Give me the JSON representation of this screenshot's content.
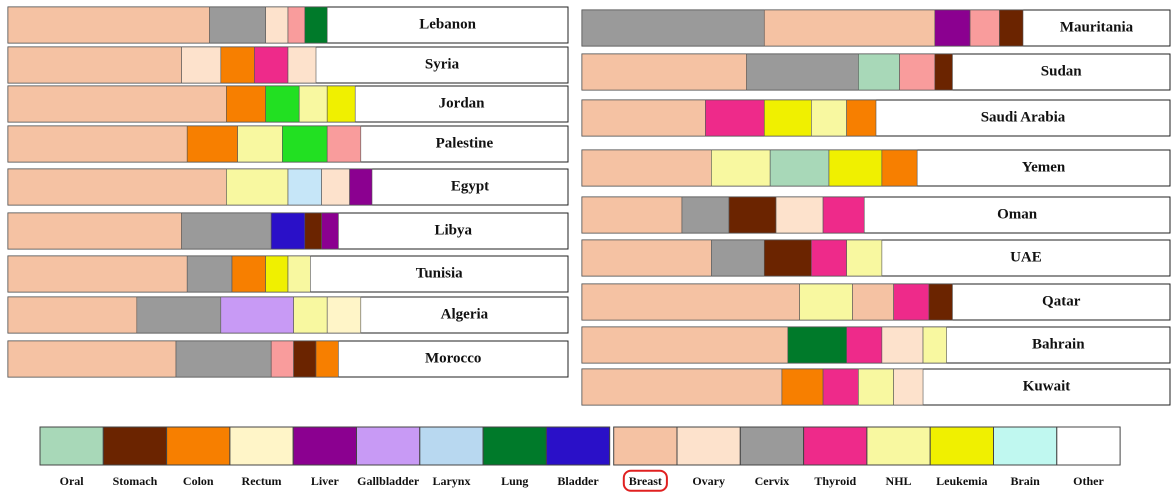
{
  "left": [
    {
      "name": "Lebanon",
      "segments": [
        {
          "color": "#f5c2a3",
          "value": 36
        },
        {
          "color": "#9a9a9a",
          "value": 10
        },
        {
          "color": "#fde2cc",
          "value": 4
        },
        {
          "color": "#f99c9c",
          "value": 3
        },
        {
          "color": "#007a2a",
          "value": 4
        }
      ]
    },
    {
      "name": "Syria",
      "segments": [
        {
          "color": "#f5c2a3",
          "value": 31
        },
        {
          "color": "#fde2cc",
          "value": 7
        },
        {
          "color": "#f77f00",
          "value": 6
        },
        {
          "color": "#ee2a8a",
          "value": 6
        },
        {
          "color": "#fde2cc",
          "value": 5
        }
      ]
    },
    {
      "name": "Jordan",
      "segments": [
        {
          "color": "#f5c2a3",
          "value": 39
        },
        {
          "color": "#f77f00",
          "value": 7
        },
        {
          "color": "#22e022",
          "value": 6
        },
        {
          "color": "#f8f8a0",
          "value": 5
        },
        {
          "color": "#f0f000",
          "value": 5
        }
      ]
    },
    {
      "name": "Palestine",
      "segments": [
        {
          "color": "#f5c2a3",
          "value": 32
        },
        {
          "color": "#f77f00",
          "value": 9
        },
        {
          "color": "#f8f8a0",
          "value": 8
        },
        {
          "color": "#22e022",
          "value": 8
        },
        {
          "color": "#f99c9c",
          "value": 6
        }
      ]
    },
    {
      "name": "Egypt",
      "segments": [
        {
          "color": "#f5c2a3",
          "value": 39
        },
        {
          "color": "#f8f8a0",
          "value": 11
        },
        {
          "color": "#c6e6f8",
          "value": 6
        },
        {
          "color": "#fde2cc",
          "value": 5
        },
        {
          "color": "#8b0090",
          "value": 4
        }
      ]
    },
    {
      "name": "Libya",
      "segments": [
        {
          "color": "#f5c2a3",
          "value": 31
        },
        {
          "color": "#9a9a9a",
          "value": 16
        },
        {
          "color": "#2a10c8",
          "value": 6
        },
        {
          "color": "#6b2400",
          "value": 3
        },
        {
          "color": "#8b0090",
          "value": 3
        }
      ]
    },
    {
      "name": "Tunisia",
      "segments": [
        {
          "color": "#f5c2a3",
          "value": 32
        },
        {
          "color": "#9a9a9a",
          "value": 8
        },
        {
          "color": "#f77f00",
          "value": 6
        },
        {
          "color": "#f0f000",
          "value": 4
        },
        {
          "color": "#f8f8a0",
          "value": 4
        }
      ]
    },
    {
      "name": "Algeria",
      "segments": [
        {
          "color": "#f5c2a3",
          "value": 23
        },
        {
          "color": "#9a9a9a",
          "value": 15
        },
        {
          "color": "#c89af5",
          "value": 13
        },
        {
          "color": "#f8f8a0",
          "value": 6
        },
        {
          "color": "#fff5c8",
          "value": 6
        }
      ]
    },
    {
      "name": "Morocco",
      "segments": [
        {
          "color": "#f5c2a3",
          "value": 30
        },
        {
          "color": "#9a9a9a",
          "value": 17
        },
        {
          "color": "#f99c9c",
          "value": 4
        },
        {
          "color": "#6b2400",
          "value": 4
        },
        {
          "color": "#f77f00",
          "value": 4
        }
      ]
    }
  ],
  "right": [
    {
      "name": "Mauritania",
      "segments": [
        {
          "color": "#9a9a9a",
          "value": 31
        },
        {
          "color": "#f5c2a3",
          "value": 29
        },
        {
          "color": "#8b0090",
          "value": 6
        },
        {
          "color": "#f99c9c",
          "value": 5
        },
        {
          "color": "#6b2400",
          "value": 4
        }
      ]
    },
    {
      "name": "Sudan",
      "segments": [
        {
          "color": "#f5c2a3",
          "value": 28
        },
        {
          "color": "#9a9a9a",
          "value": 19
        },
        {
          "color": "#a8d8b8",
          "value": 7
        },
        {
          "color": "#f99c9c",
          "value": 6
        },
        {
          "color": "#6b2400",
          "value": 3
        }
      ]
    },
    {
      "name": "Saudi Arabia",
      "segments": [
        {
          "color": "#f5c2a3",
          "value": 21
        },
        {
          "color": "#ee2a8a",
          "value": 10
        },
        {
          "color": "#f0f000",
          "value": 8
        },
        {
          "color": "#f8f8a0",
          "value": 6
        },
        {
          "color": "#f77f00",
          "value": 5
        }
      ]
    },
    {
      "name": "Yemen",
      "segments": [
        {
          "color": "#f5c2a3",
          "value": 22
        },
        {
          "color": "#f8f8a0",
          "value": 10
        },
        {
          "color": "#a8d8b8",
          "value": 10
        },
        {
          "color": "#f0f000",
          "value": 9
        },
        {
          "color": "#f77f00",
          "value": 6
        }
      ]
    },
    {
      "name": "Oman",
      "segments": [
        {
          "color": "#f5c2a3",
          "value": 17
        },
        {
          "color": "#9a9a9a",
          "value": 8
        },
        {
          "color": "#6b2400",
          "value": 8
        },
        {
          "color": "#fde2cc",
          "value": 8
        },
        {
          "color": "#ee2a8a",
          "value": 7
        }
      ]
    },
    {
      "name": "UAE",
      "segments": [
        {
          "color": "#f5c2a3",
          "value": 22
        },
        {
          "color": "#9a9a9a",
          "value": 9
        },
        {
          "color": "#6b2400",
          "value": 8
        },
        {
          "color": "#ee2a8a",
          "value": 6
        },
        {
          "color": "#f8f8a0",
          "value": 6
        }
      ]
    },
    {
      "name": "Qatar",
      "segments": [
        {
          "color": "#f5c2a3",
          "value": 37
        },
        {
          "color": "#f8f8a0",
          "value": 9
        },
        {
          "color": "#f5c2a3",
          "value": 7
        },
        {
          "color": "#ee2a8a",
          "value": 6
        },
        {
          "color": "#6b2400",
          "value": 4
        }
      ]
    },
    {
      "name": "Bahrain",
      "segments": [
        {
          "color": "#f5c2a3",
          "value": 35
        },
        {
          "color": "#007a2a",
          "value": 10
        },
        {
          "color": "#ee2a8a",
          "value": 6
        },
        {
          "color": "#fde2cc",
          "value": 7
        },
        {
          "color": "#f8f8a0",
          "value": 4
        }
      ]
    },
    {
      "name": "Kuwait",
      "segments": [
        {
          "color": "#f5c2a3",
          "value": 34
        },
        {
          "color": "#f77f00",
          "value": 7
        },
        {
          "color": "#ee2a8a",
          "value": 6
        },
        {
          "color": "#f8f8a0",
          "value": 6
        },
        {
          "color": "#fde2cc",
          "value": 5
        }
      ]
    }
  ],
  "legend": [
    {
      "name": "Oral",
      "color": "#a8d8b8"
    },
    {
      "name": "Stomach",
      "color": "#6b2400"
    },
    {
      "name": "Colon",
      "color": "#f77f00"
    },
    {
      "name": "Rectum",
      "color": "#fff5c8"
    },
    {
      "name": "Liver",
      "color": "#8b0090"
    },
    {
      "name": "Gallbladder",
      "color": "#c89af5"
    },
    {
      "name": "Larynx",
      "color": "#b8d8f0"
    },
    {
      "name": "Lung",
      "color": "#007a2a"
    },
    {
      "name": "Bladder",
      "color": "#2a10c8"
    },
    {
      "name": "Breast",
      "color": "#f5c2a3"
    },
    {
      "name": "Ovary",
      "color": "#fde2cc"
    },
    {
      "name": "Cervix",
      "color": "#9a9a9a"
    },
    {
      "name": "Thyroid",
      "color": "#ee2a8a"
    },
    {
      "name": "NHL",
      "color": "#f8f8a0"
    },
    {
      "name": "Leukemia",
      "color": "#f0f000"
    },
    {
      "name": "Brain",
      "color": "#c0f8f0"
    },
    {
      "name": "Other",
      "color": "#ffffff"
    }
  ]
}
